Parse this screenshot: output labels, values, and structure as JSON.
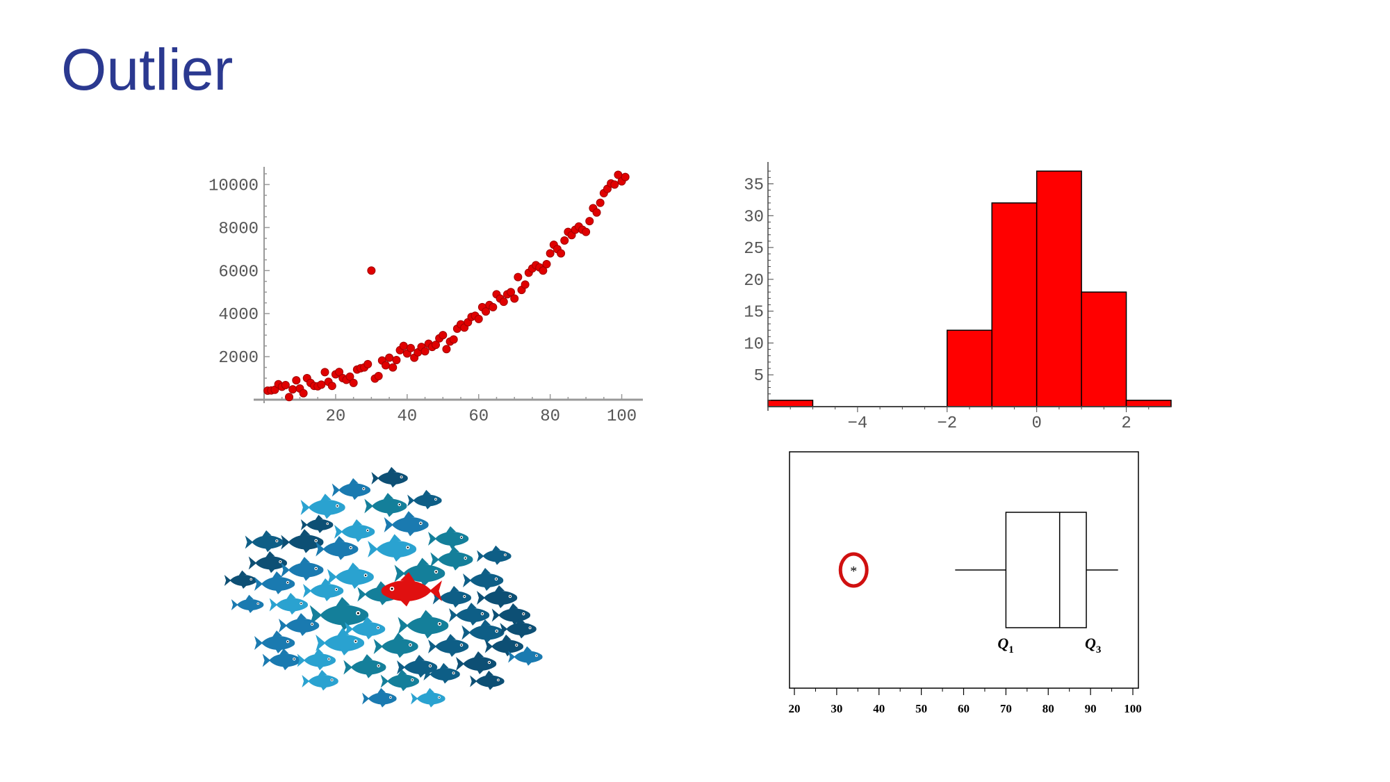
{
  "slide": {
    "title": "Outlier"
  },
  "colors": {
    "title": "#2b3990",
    "points": "#e00000",
    "bars": "#ff0000",
    "outlier_ring": "#d01010",
    "fish_outlier": "#e01010"
  },
  "fish_school": {
    "icon": "fish-icon",
    "school_colors": [
      "#0d4f74",
      "#1a7ab0",
      "#2aa2d0",
      "#147f9a",
      "#0e5e86"
    ],
    "outlier_color": "#e01010"
  },
  "chart_data": [
    {
      "type": "scatter",
      "xlim": [
        0,
        103
      ],
      "ylim": [
        0,
        10500
      ],
      "xticks": [
        20,
        40,
        60,
        80,
        100
      ],
      "yticks": [
        2000,
        4000,
        6000,
        8000,
        10000
      ],
      "xtick_labels": [
        "20",
        "40",
        "60",
        "80",
        "100"
      ],
      "ytick_labels": [
        "2000",
        "4000",
        "6000",
        "8000",
        "10000"
      ],
      "grid": false,
      "outlier": {
        "x": 30,
        "y": 6000
      },
      "points": [
        [
          1,
          420
        ],
        [
          2,
          430
        ],
        [
          3,
          460
        ],
        [
          4,
          720
        ],
        [
          5,
          600
        ],
        [
          6,
          680
        ],
        [
          7,
          120
        ],
        [
          8,
          480
        ],
        [
          9,
          900
        ],
        [
          10,
          520
        ],
        [
          11,
          300
        ],
        [
          12,
          1000
        ],
        [
          13,
          780
        ],
        [
          14,
          640
        ],
        [
          15,
          620
        ],
        [
          16,
          700
        ],
        [
          17,
          1280
        ],
        [
          18,
          830
        ],
        [
          19,
          640
        ],
        [
          20,
          1180
        ],
        [
          21,
          1290
        ],
        [
          22,
          1000
        ],
        [
          23,
          920
        ],
        [
          24,
          1070
        ],
        [
          25,
          780
        ],
        [
          26,
          1400
        ],
        [
          27,
          1460
        ],
        [
          28,
          1500
        ],
        [
          29,
          1650
        ],
        [
          30,
          6000
        ],
        [
          31,
          980
        ],
        [
          32,
          1100
        ],
        [
          33,
          1820
        ],
        [
          34,
          1600
        ],
        [
          35,
          1950
        ],
        [
          36,
          1500
        ],
        [
          37,
          1840
        ],
        [
          38,
          2300
        ],
        [
          39,
          2500
        ],
        [
          40,
          2150
        ],
        [
          41,
          2400
        ],
        [
          42,
          1950
        ],
        [
          43,
          2200
        ],
        [
          44,
          2450
        ],
        [
          45,
          2250
        ],
        [
          46,
          2600
        ],
        [
          47,
          2450
        ],
        [
          48,
          2550
        ],
        [
          49,
          2850
        ],
        [
          50,
          3000
        ],
        [
          51,
          2350
        ],
        [
          52,
          2700
        ],
        [
          53,
          2800
        ],
        [
          54,
          3300
        ],
        [
          55,
          3500
        ],
        [
          56,
          3350
        ],
        [
          57,
          3600
        ],
        [
          58,
          3850
        ],
        [
          59,
          3900
        ],
        [
          60,
          3750
        ],
        [
          61,
          4300
        ],
        [
          62,
          4100
        ],
        [
          63,
          4400
        ],
        [
          64,
          4300
        ],
        [
          65,
          4900
        ],
        [
          66,
          4700
        ],
        [
          67,
          4550
        ],
        [
          68,
          4900
        ],
        [
          69,
          5000
        ],
        [
          70,
          4700
        ],
        [
          71,
          5700
        ],
        [
          72,
          5100
        ],
        [
          73,
          5350
        ],
        [
          74,
          5900
        ],
        [
          75,
          6100
        ],
        [
          76,
          6250
        ],
        [
          77,
          6150
        ],
        [
          78,
          6000
        ],
        [
          79,
          6300
        ],
        [
          80,
          6800
        ],
        [
          81,
          7200
        ],
        [
          82,
          7000
        ],
        [
          83,
          6800
        ],
        [
          84,
          7400
        ],
        [
          85,
          7800
        ],
        [
          86,
          7650
        ],
        [
          87,
          7900
        ],
        [
          88,
          8050
        ],
        [
          89,
          7900
        ],
        [
          90,
          7800
        ],
        [
          91,
          8300
        ],
        [
          92,
          8900
        ],
        [
          93,
          8700
        ],
        [
          94,
          9150
        ],
        [
          95,
          9600
        ],
        [
          96,
          9800
        ],
        [
          97,
          10050
        ],
        [
          98,
          10000
        ],
        [
          99,
          10450
        ],
        [
          100,
          10150
        ],
        [
          101,
          10350
        ]
      ]
    },
    {
      "type": "bar",
      "subtype": "histogram",
      "xlim": [
        -6,
        3
      ],
      "ylim": [
        0,
        38
      ],
      "xticks": [
        -4,
        -2,
        0,
        2
      ],
      "yticks": [
        5,
        10,
        15,
        20,
        25,
        30,
        35
      ],
      "xtick_labels": [
        "-4",
        "-2",
        "0",
        "2"
      ],
      "ytick_labels": [
        "5",
        "10",
        "15",
        "20",
        "25",
        "30",
        "35"
      ],
      "bins": [
        {
          "from": -6,
          "to": -5,
          "count": 1
        },
        {
          "from": -5,
          "to": -2,
          "count": 0
        },
        {
          "from": -2,
          "to": -1,
          "count": 12
        },
        {
          "from": -1,
          "to": 0,
          "count": 32
        },
        {
          "from": 0,
          "to": 1,
          "count": 37
        },
        {
          "from": 1,
          "to": 2,
          "count": 18
        },
        {
          "from": 2,
          "to": 3,
          "count": 1
        }
      ]
    },
    {
      "type": "boxplot",
      "xlim": [
        18,
        101
      ],
      "xticks": [
        20,
        30,
        40,
        50,
        60,
        70,
        80,
        90,
        100
      ],
      "xtick_labels": [
        "20",
        "30",
        "40",
        "50",
        "60",
        "70",
        "80",
        "90",
        "100"
      ],
      "whisker_low": 58,
      "q1": 70,
      "median": 82.7,
      "q3": 89,
      "whisker_high": 96.5,
      "outlier": 34,
      "outlier_marker": "*",
      "labels": {
        "q1": {
          "main": "Q",
          "sub": "1"
        },
        "q3": {
          "main": "Q",
          "sub": "3"
        }
      }
    }
  ]
}
